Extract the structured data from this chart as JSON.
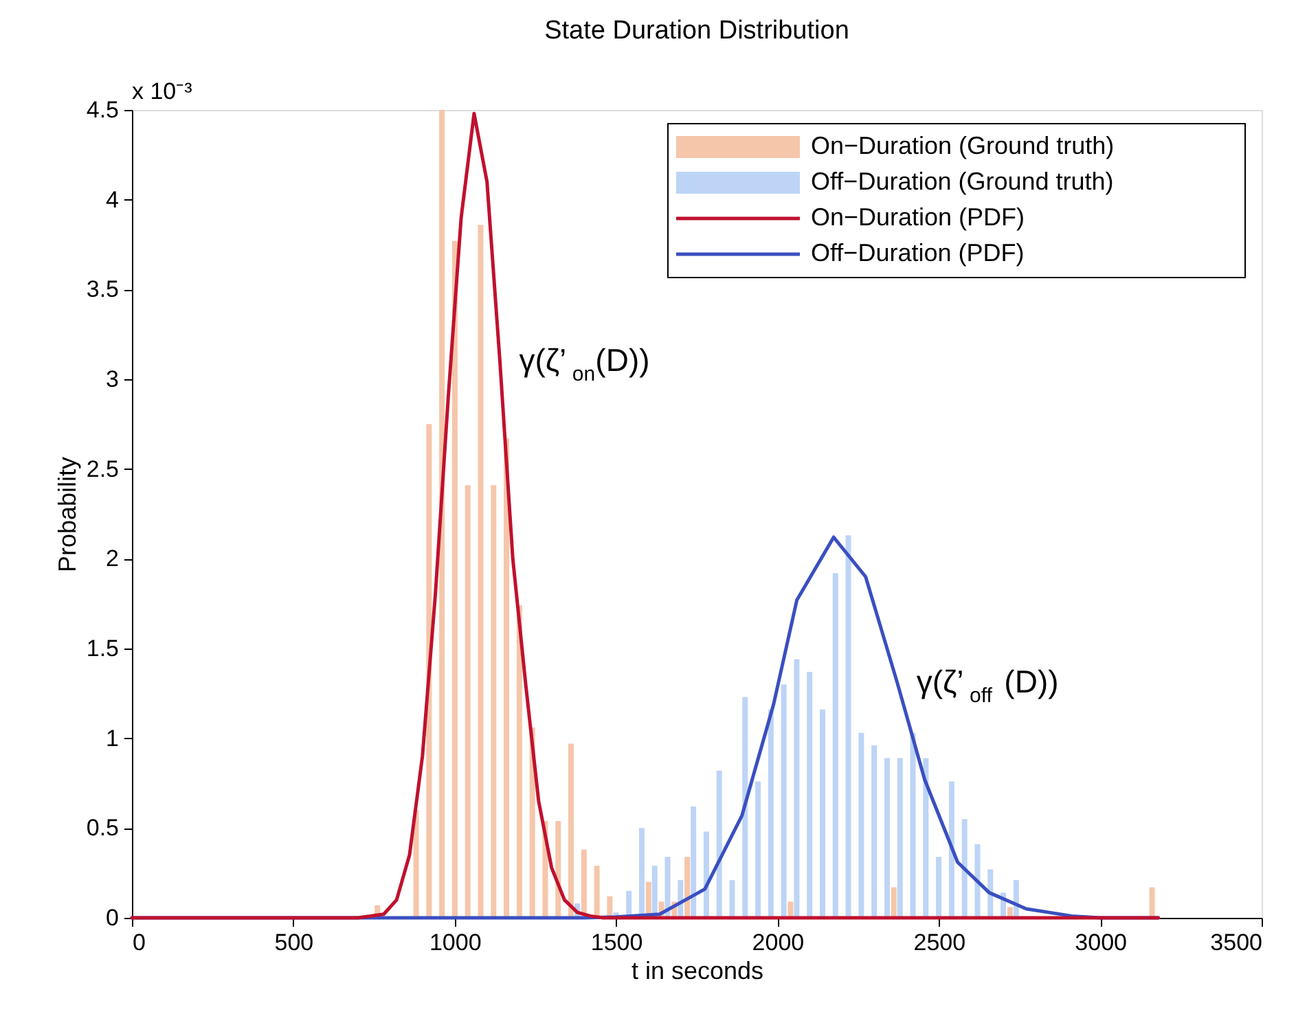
{
  "chart_data": {
    "type": "bar",
    "title": "State Duration Distribution",
    "xlabel": "t in seconds",
    "ylabel": "Probability",
    "annotations": [
      "x 10⁻³",
      "γ(ζ’$_{on}$(D))",
      "γ(ζ’$_{off}$(D))"
    ],
    "xlim": [
      0,
      3500
    ],
    "xticks": [
      0,
      500,
      1000,
      1500,
      2000,
      2500,
      3000,
      3500
    ],
    "ylim": [
      0,
      4.5
    ],
    "yticks": [
      0,
      0.5,
      1,
      1.5,
      2,
      2.5,
      3,
      3.5,
      4,
      4.5
    ],
    "grid": false,
    "legend": "top right",
    "series": [
      {
        "name": "On−Duration (Ground truth)",
        "color": "#f5c6aa",
        "x": [
          770,
          890,
          930,
          970,
          1010,
          1050,
          1090,
          1130,
          1170,
          1210,
          1250,
          1290,
          1330,
          1370,
          1410,
          1450,
          1490,
          1610,
          1650,
          1690,
          1730,
          2050,
          2370,
          2730,
          3170
        ],
        "values": [
          0.07,
          0.6,
          2.75,
          4.5,
          3.77,
          2.41,
          3.86,
          2.41,
          2.67,
          1.74,
          1.06,
          0.54,
          0.54,
          0.97,
          0.38,
          0.29,
          0.12,
          0.2,
          0.09,
          0.09,
          0.34,
          0.09,
          0.17,
          0.06,
          0.17
        ]
      },
      {
        "name": "Off−Duration (Ground truth)",
        "color": "#bdd4f6",
        "x": [
          1370,
          1490,
          1530,
          1570,
          1610,
          1650,
          1690,
          1730,
          1770,
          1810,
          1850,
          1890,
          1930,
          1970,
          2010,
          2050,
          2090,
          2130,
          2170,
          2210,
          2250,
          2290,
          2330,
          2370,
          2410,
          2450,
          2490,
          2530,
          2570,
          2610,
          2650,
          2690,
          2730
        ],
        "values": [
          0.08,
          0.03,
          0.15,
          0.5,
          0.29,
          0.34,
          0.21,
          0.62,
          0.48,
          0.82,
          0.21,
          1.23,
          0.76,
          1.16,
          1.3,
          1.44,
          1.37,
          1.16,
          1.92,
          2.13,
          1.03,
          0.96,
          0.89,
          0.89,
          1.03,
          0.89,
          0.34,
          0.76,
          0.55,
          0.41,
          0.27,
          0.14,
          0.21
        ]
      },
      {
        "name": "On−Duration (PDF)",
        "type": "line",
        "color": "#c0112e",
        "x": [
          0,
          700,
          780,
          820,
          860,
          900,
          940,
          980,
          1020,
          1060,
          1100,
          1140,
          1180,
          1220,
          1260,
          1300,
          1340,
          1380,
          1420,
          1460,
          3180
        ],
        "values": [
          0,
          0,
          0.02,
          0.1,
          0.35,
          0.9,
          1.8,
          2.9,
          3.9,
          4.48,
          4.1,
          3.1,
          2.0,
          1.3,
          0.65,
          0.28,
          0.1,
          0.03,
          0.01,
          0,
          0
        ]
      },
      {
        "name": "Off−Duration (PDF)",
        "type": "line",
        "color": "#3a4fc0",
        "x": [
          0,
          1400,
          1500,
          1635,
          1775,
          1890,
          1988,
          2060,
          2174,
          2273,
          2371,
          2456,
          2558,
          2656,
          2771,
          2912,
          3000,
          3180
        ],
        "values": [
          0,
          0,
          0.005,
          0.02,
          0.16,
          0.57,
          1.19,
          1.77,
          2.12,
          1.9,
          1.31,
          0.77,
          0.31,
          0.14,
          0.05,
          0.01,
          0,
          0
        ]
      }
    ]
  }
}
